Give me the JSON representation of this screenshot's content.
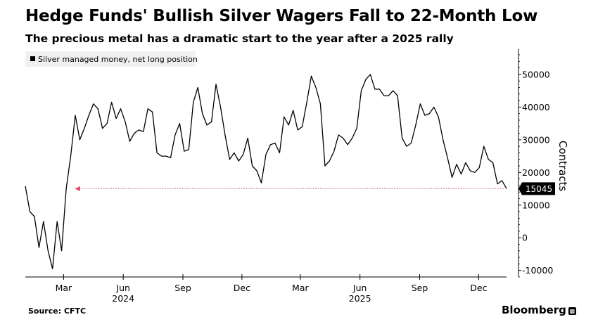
{
  "header": {
    "title": "Hedge Funds' Bullish Silver Wagers Fall to 22-Month Low",
    "subtitle": "The precious metal has a dramatic start to the year after a 2025 rally"
  },
  "footer": {
    "source": "Source: CFTC",
    "brand": "Bloomberg",
    "brand_icon": "bloomberg-logo-icon"
  },
  "colors": {
    "line": "#000000",
    "reference_line": "#e0506a",
    "axis": "#000000",
    "label_bg": "#000000",
    "label_text": "#ffffff"
  },
  "chart_data": {
    "type": "line",
    "title": "Hedge Funds' Bullish Silver Wagers Fall to 22-Month Low",
    "subtitle": "The precious metal has a dramatic start to the year after a 2025 rally",
    "ylabel": "Contracts",
    "xlabel": "",
    "ylim": [
      -12000,
      56000
    ],
    "yticks": [
      -10000,
      0,
      10000,
      20000,
      30000,
      40000,
      50000
    ],
    "ytick_labels": [
      "-10000",
      "0",
      "10000",
      "20000",
      "30000",
      "40000",
      "50000"
    ],
    "x_start": "2024-01-02",
    "x_end": "2026-01-13",
    "month_ticks": [
      {
        "date": "2024-03-01",
        "label": "Mar"
      },
      {
        "date": "2024-06-01",
        "label": "Jun"
      },
      {
        "date": "2024-09-01",
        "label": "Sep"
      },
      {
        "date": "2024-12-01",
        "label": "Dec"
      },
      {
        "date": "2025-03-01",
        "label": "Mar"
      },
      {
        "date": "2025-06-01",
        "label": "Jun"
      },
      {
        "date": "2025-09-01",
        "label": "Sep"
      },
      {
        "date": "2025-12-01",
        "label": "Dec"
      }
    ],
    "year_labels": [
      {
        "date": "2024-06-01",
        "label": "2024"
      },
      {
        "date": "2025-06-01",
        "label": "2025"
      }
    ],
    "legend": [
      "Silver managed money, net long position"
    ],
    "legend_position": "top-left",
    "last_value": 15045,
    "last_value_label": "15045",
    "reference_line_value": 15045,
    "series": [
      {
        "name": "Silver managed money, net long position",
        "dates": [
          "2024-01-02",
          "2024-01-09",
          "2024-01-16",
          "2024-01-23",
          "2024-01-30",
          "2024-02-06",
          "2024-02-13",
          "2024-02-20",
          "2024-02-27",
          "2024-03-05",
          "2024-03-12",
          "2024-03-19",
          "2024-03-26",
          "2024-04-02",
          "2024-04-09",
          "2024-04-16",
          "2024-04-23",
          "2024-04-30",
          "2024-05-07",
          "2024-05-14",
          "2024-05-21",
          "2024-05-28",
          "2024-06-04",
          "2024-06-11",
          "2024-06-18",
          "2024-06-25",
          "2024-07-02",
          "2024-07-09",
          "2024-07-16",
          "2024-07-23",
          "2024-07-30",
          "2024-08-06",
          "2024-08-13",
          "2024-08-20",
          "2024-08-27",
          "2024-09-03",
          "2024-09-10",
          "2024-09-17",
          "2024-09-24",
          "2024-10-01",
          "2024-10-08",
          "2024-10-15",
          "2024-10-22",
          "2024-10-29",
          "2024-11-05",
          "2024-11-12",
          "2024-11-19",
          "2024-11-26",
          "2024-12-03",
          "2024-12-10",
          "2024-12-17",
          "2024-12-24",
          "2024-12-31",
          "2025-01-07",
          "2025-01-14",
          "2025-01-21",
          "2025-01-28",
          "2025-02-04",
          "2025-02-11",
          "2025-02-18",
          "2025-02-25",
          "2025-03-04",
          "2025-03-11",
          "2025-03-18",
          "2025-03-25",
          "2025-04-01",
          "2025-04-08",
          "2025-04-15",
          "2025-04-22",
          "2025-04-29",
          "2025-05-06",
          "2025-05-13",
          "2025-05-20",
          "2025-05-27",
          "2025-06-03",
          "2025-06-10",
          "2025-06-17",
          "2025-06-24",
          "2025-07-01",
          "2025-07-08",
          "2025-07-15",
          "2025-07-22",
          "2025-07-29",
          "2025-08-05",
          "2025-08-12",
          "2025-08-19",
          "2025-08-26",
          "2025-09-02",
          "2025-09-09",
          "2025-09-16",
          "2025-09-23",
          "2025-09-30",
          "2025-10-07",
          "2025-10-14",
          "2025-10-21",
          "2025-10-28",
          "2025-11-04",
          "2025-11-11",
          "2025-11-18",
          "2025-11-25",
          "2025-12-02",
          "2025-12-09",
          "2025-12-16",
          "2025-12-23",
          "2025-12-30",
          "2026-01-06",
          "2026-01-13"
        ],
        "values": [
          15800,
          8000,
          6500,
          -3000,
          5000,
          -4000,
          -9500,
          5000,
          -4000,
          15000,
          25000,
          37500,
          30000,
          33500,
          37500,
          41000,
          39500,
          33500,
          35000,
          41500,
          36500,
          39500,
          35500,
          29500,
          32000,
          33000,
          32500,
          39500,
          38500,
          26000,
          25000,
          25000,
          24500,
          31500,
          35000,
          26500,
          27000,
          41500,
          46000,
          38000,
          34500,
          35500,
          47000,
          40000,
          31500,
          24000,
          26000,
          23500,
          25500,
          30500,
          22000,
          20500,
          16800,
          25500,
          28500,
          29000,
          26000,
          37000,
          34500,
          39000,
          33000,
          34000,
          41500,
          49500,
          46000,
          41000,
          22000,
          23500,
          26500,
          31500,
          30500,
          28500,
          30500,
          33500,
          45000,
          48500,
          50000,
          45500,
          45500,
          43500,
          43500,
          45000,
          43500,
          30500,
          28000,
          29000,
          34500,
          41000,
          37500,
          38000,
          40000,
          37000,
          30000,
          24500,
          18500,
          22500,
          19500,
          23000,
          20500,
          20000,
          21500,
          28000,
          24000,
          23000,
          16500,
          17500,
          15045
        ]
      }
    ]
  }
}
